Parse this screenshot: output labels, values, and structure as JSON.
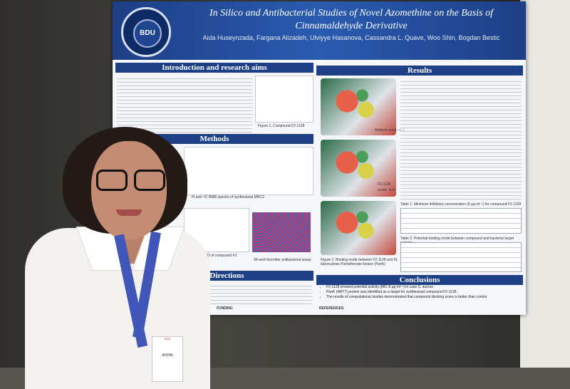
{
  "poster": {
    "title": "In Silico and Antibacterial Studies of Novel Azomethine on the Basis of Cinnamaldehyde Derivative",
    "logo_text": "BDU",
    "authors": "Aida Huseynzada, Fargana Alizadeh, Ulviyye Hasanova, Cassandra L. Quave, Woo Shin, Bogdan Bestic",
    "intro_heading": "Introduction and research aims",
    "methods_heading": "Methods",
    "future_heading": "Future Directions",
    "results_heading": "Results",
    "conclusions_heading": "Conclusions",
    "figure1_caption": "Figure 1. Compound F2-1128",
    "nmr_caption": "¹H and ¹³C NMR spectra of synthesized MHC3",
    "xrd_caption": "Powder XRD of compound F2",
    "plate_caption": "96-well microtiter antibacterial assay",
    "docking_caption": "Figure 2. Binding mode between F2-1128 and M. tuberculosis Pantothenate kinase (PanK)",
    "score_label": "Redock score: -4.8",
    "compound_label": "F2-1128",
    "compound_score": "score: -6.8",
    "table1_caption": "Table 1. Minimum inhibitory concentration (0 μg ml⁻¹) for compound F2-1128",
    "table2_caption": "Table 2. Potential binding mode between compound and bacterial target proteins",
    "conclusion_points": [
      "F2-1128 showed potential activity (MIC 8 μg ml⁻¹) in case S. aureus.",
      "PanK (4MT7) protein was identified as a target for synthesized compound F2-1128.",
      "The results of computational studies demonstrated that compound docking score is better than control"
    ],
    "funding_heading": "FUNDING",
    "references_heading": "REFERENCES"
  },
  "badge": {
    "event": "ACS",
    "name": "AYDIN"
  },
  "colors": {
    "poster_blue": "#1d3f86",
    "lanyard": "#4056b8"
  }
}
